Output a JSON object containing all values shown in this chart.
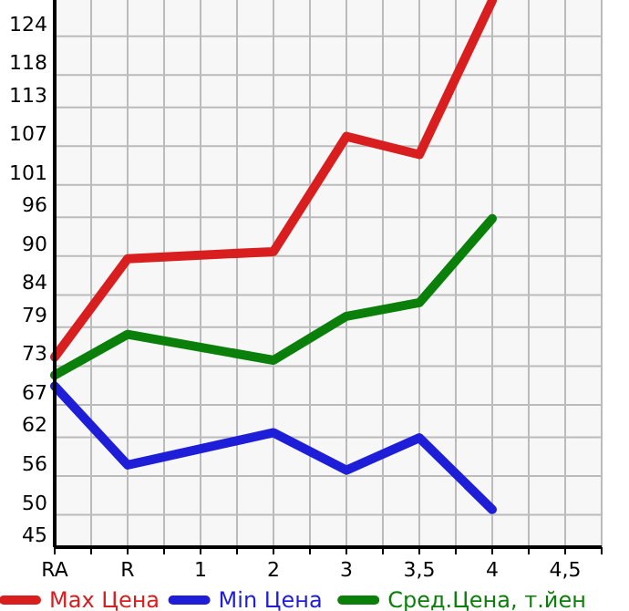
{
  "chart_data": {
    "type": "line",
    "categories": [
      "RA",
      "R",
      "1",
      "2",
      "3",
      "3,5",
      "4",
      "4,5"
    ],
    "series": [
      {
        "name": "Max Цена",
        "color": "#d81e1e",
        "values": [
          74.4,
          89.6,
          null,
          90.7,
          108.5,
          105.7,
          129.5,
          null
        ]
      },
      {
        "name": "Min Цена",
        "color": "#1e1ed8",
        "values": [
          69.9,
          57.7,
          null,
          62.7,
          56.9,
          61.9,
          50.8,
          null
        ]
      },
      {
        "name": "Сред.Цена, т.йен",
        "color": "#0a800a",
        "values": [
          71.6,
          77.9,
          null,
          73.9,
          80.7,
          82.8,
          95.8,
          null
        ]
      }
    ],
    "ylim": [
      45,
      129.6
    ],
    "yticks": [
      45,
      50,
      56,
      62,
      67,
      73,
      79,
      84,
      90,
      96,
      101,
      107,
      113,
      118,
      124
    ],
    "grid": true,
    "legend": "bottom",
    "line_style": "solid",
    "marker": "none"
  }
}
